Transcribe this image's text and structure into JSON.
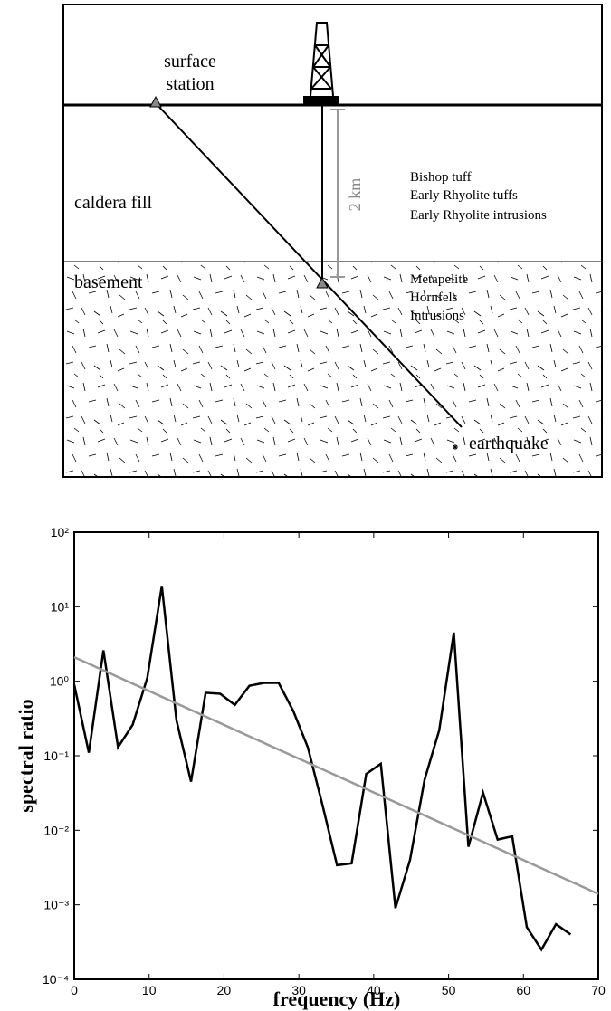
{
  "diagram": {
    "surface_station": [
      "surface",
      "station"
    ],
    "caldera_fill": "caldera fill",
    "basement": "basement",
    "depth": "2 km",
    "fill_units": [
      "Bishop tuff",
      "Early Rhyolite tuffs",
      "Early Rhyolite intrusions"
    ],
    "basement_units": [
      "Metapelite",
      "Hornfels",
      "Intrusions"
    ],
    "earthquake": "earthquake"
  },
  "chart_data": {
    "type": "line",
    "xlabel": "frequency (Hz)",
    "ylabel": "spectral ratio",
    "yscale": "log",
    "xlim": [
      0,
      70
    ],
    "xticks": [
      0,
      10,
      20,
      30,
      40,
      50,
      60,
      70
    ],
    "ylim": [
      0.0001,
      100
    ],
    "yticks": [
      {
        "value": 0.0001,
        "label": "10⁻⁴"
      },
      {
        "value": 0.001,
        "label": "10⁻³"
      },
      {
        "value": 0.01,
        "label": "10⁻²"
      },
      {
        "value": 0.1,
        "label": "10⁻¹"
      },
      {
        "value": 1,
        "label": "10⁰"
      },
      {
        "value": 10,
        "label": "10¹"
      },
      {
        "value": 100,
        "label": "10²"
      }
    ],
    "series": [
      {
        "color": "#000000",
        "x": [
          0,
          1.95,
          3.9,
          5.85,
          7.8,
          9.75,
          11.7,
          13.65,
          15.6,
          17.55,
          19.5,
          21.45,
          23.4,
          25.35,
          27.3,
          29.25,
          31.2,
          33.15,
          35.1,
          37.05,
          39,
          40.95,
          42.9,
          44.85,
          46.8,
          48.75,
          50.7,
          52.65,
          54.6,
          56.55,
          58.5,
          60.45,
          62.4,
          64.35,
          66.3
        ],
        "values": [
          0.9,
          0.11,
          2.6,
          0.13,
          0.26,
          1.1,
          19,
          0.3,
          0.045,
          0.7,
          0.68,
          0.48,
          0.87,
          0.95,
          0.95,
          0.4,
          0.13,
          0.022,
          0.0034,
          0.0036,
          0.057,
          0.078,
          0.0009,
          0.004,
          0.048,
          0.22,
          4.5,
          0.006,
          0.032,
          0.0075,
          0.0083,
          0.0005,
          0.00025,
          0.00055,
          0.0004
        ]
      },
      {
        "color": "#999999",
        "x": [
          0,
          70
        ],
        "values": [
          2.1,
          0.0014
        ]
      }
    ]
  }
}
